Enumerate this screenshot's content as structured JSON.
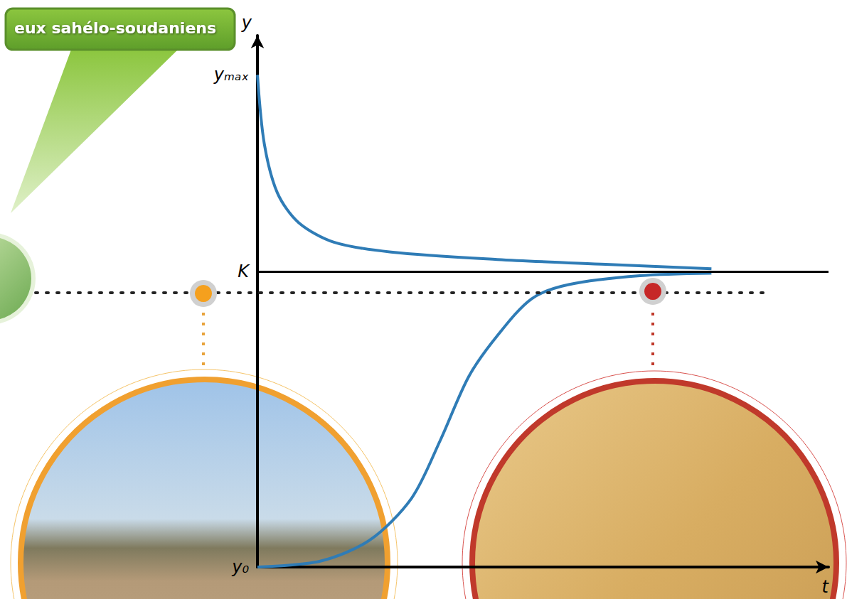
{
  "chart_data": {
    "type": "line",
    "title": "eux sahélo-soudaniens",
    "x_label": "t",
    "y_label": "y",
    "xlim": [
      0,
      100
    ],
    "ylim": [
      0,
      108
    ],
    "xticks": [],
    "yticks": [
      {
        "value": 0,
        "label": "y₀"
      },
      {
        "value": 60,
        "label": "K"
      },
      {
        "value": 100,
        "label": "yₘₐₓ"
      }
    ],
    "tick_labels": "y",
    "grid": false,
    "reference_lines": [
      60
    ],
    "series": [
      {
        "color": "#2f7cb6",
        "line_style": "solid",
        "x": [
          0,
          1.2,
          3.5,
          7.2,
          13.4,
          23.4,
          42,
          61,
          79.5
        ],
        "values": [
          100,
          86,
          76,
          70,
          66,
          64,
          62.5,
          61.5,
          60.6
        ]
      },
      {
        "color": "#2f7cb6",
        "line_style": "solid",
        "x": [
          0,
          11,
          19.7,
          27,
          32,
          37,
          42,
          48,
          54.5,
          67,
          79.5
        ],
        "values": [
          0,
          1.2,
          5.5,
          14,
          25.7,
          38.7,
          47,
          54.5,
          57.4,
          59.2,
          59.7
        ]
      }
    ]
  }
}
